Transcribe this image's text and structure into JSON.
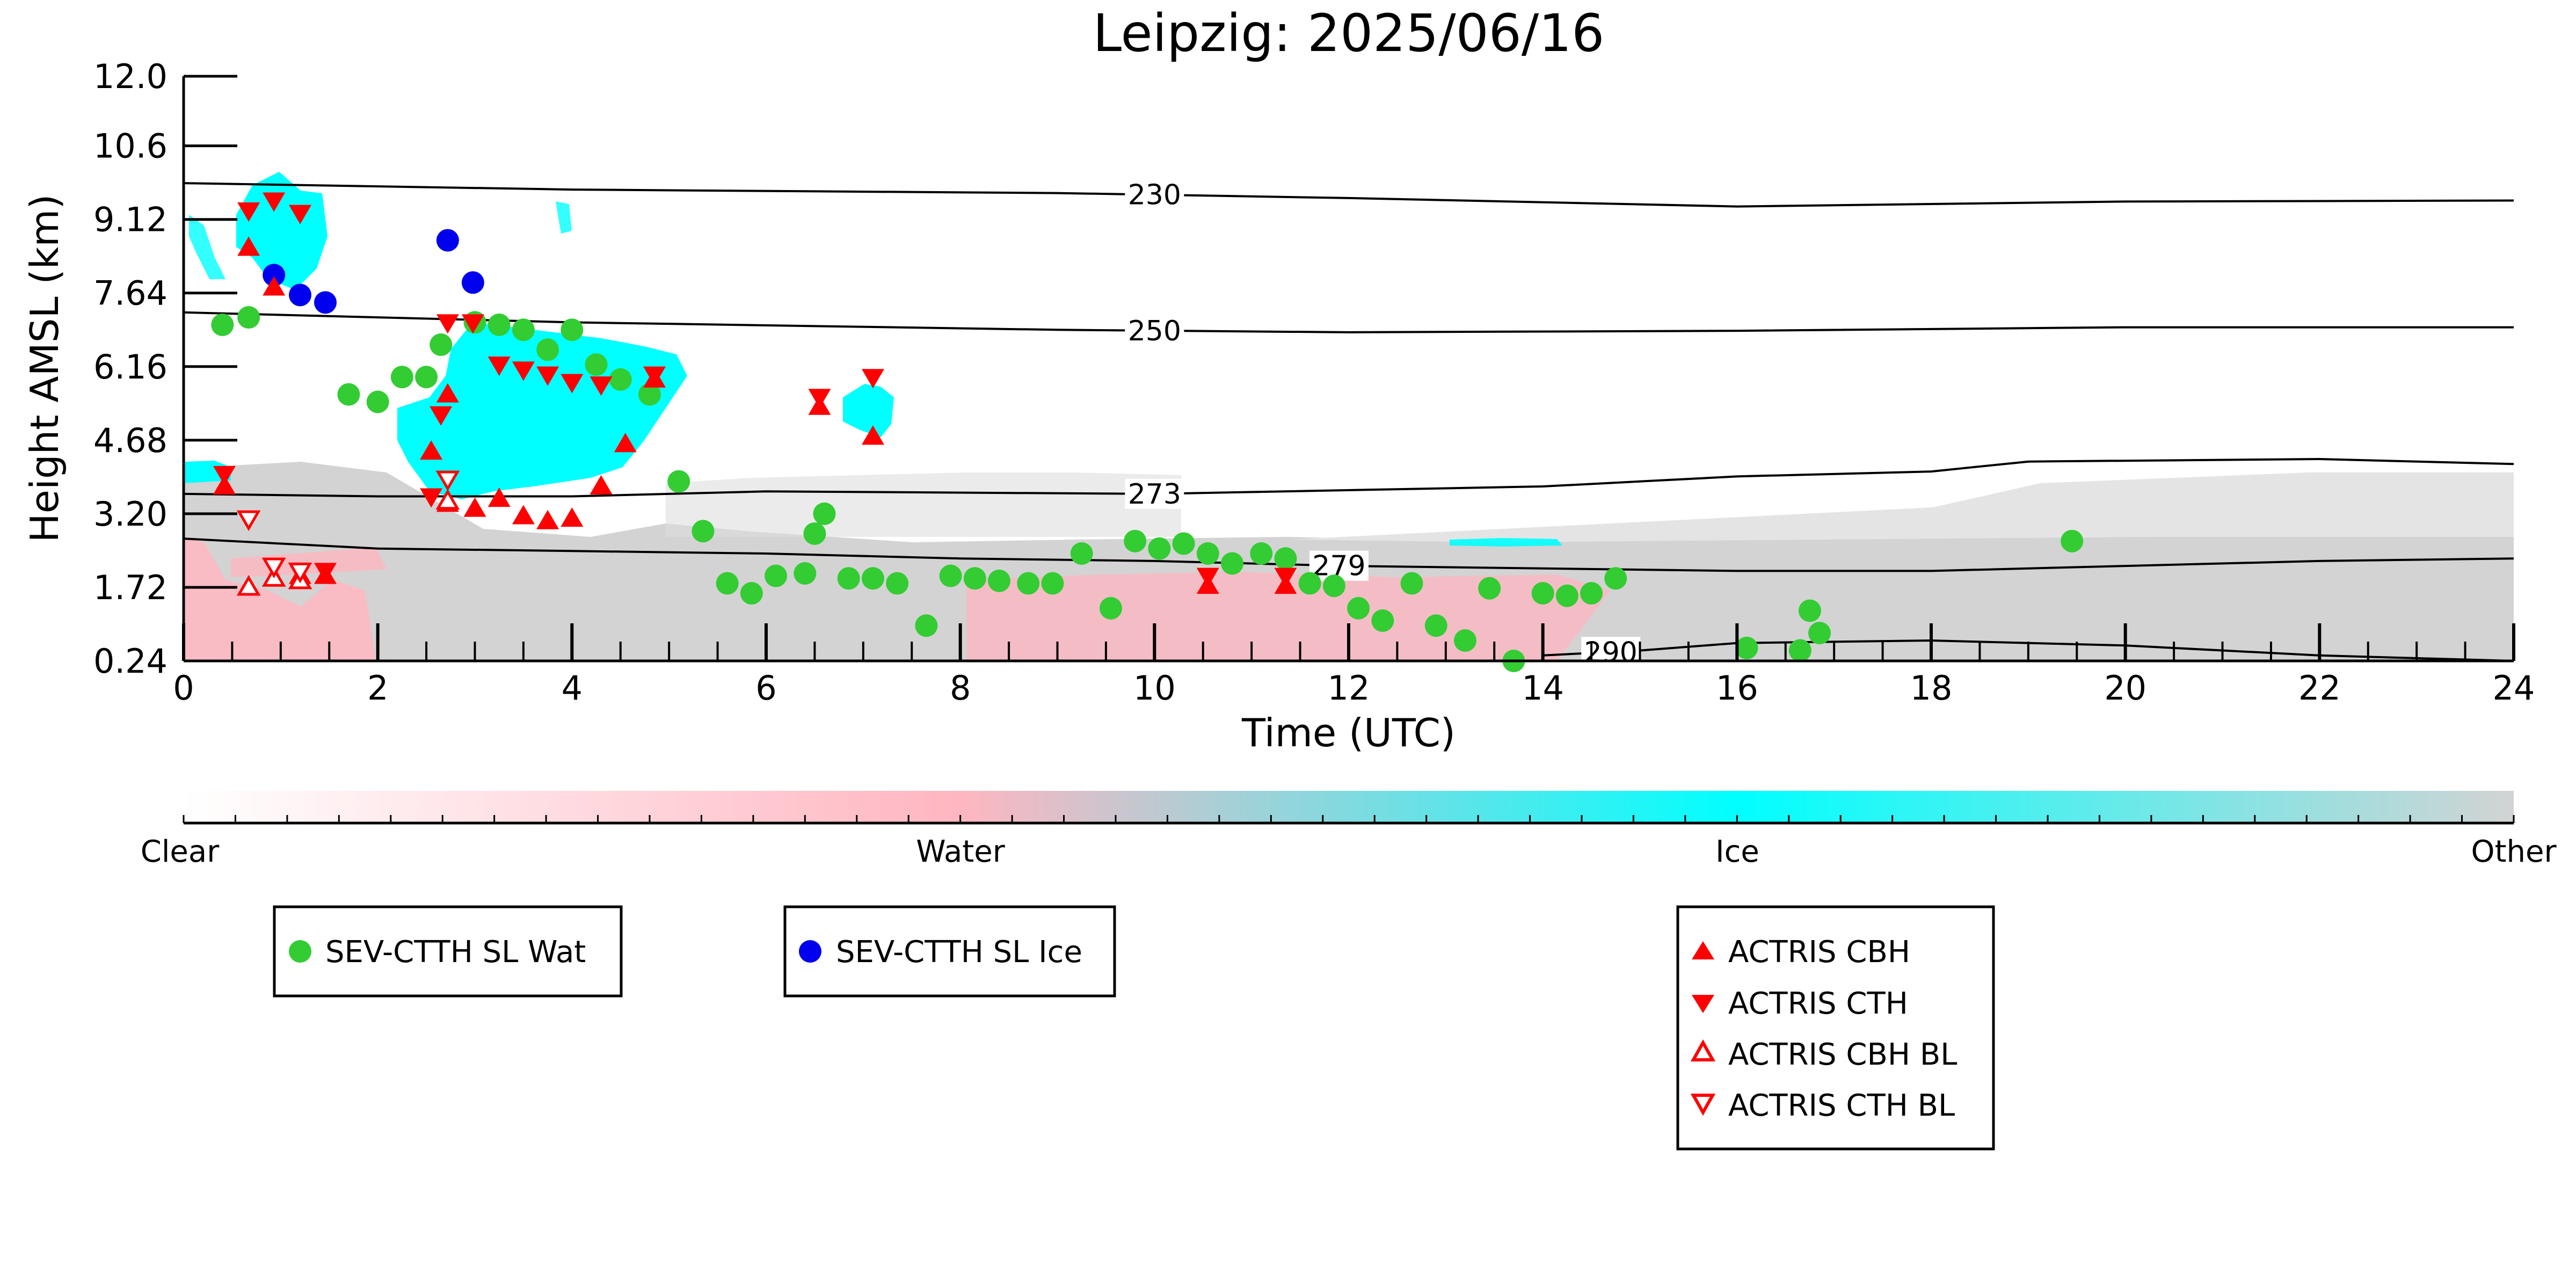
{
  "chart_data": {
    "type": "scatter",
    "title": "Leipzig: 2025/06/16",
    "xlabel": "Time (UTC)",
    "ylabel": "Height AMSL (km)",
    "xlim": [
      0,
      24
    ],
    "ylim": [
      0.24,
      12.0
    ],
    "xticks": [
      "0",
      "2",
      "4",
      "6",
      "8",
      "10",
      "12",
      "14",
      "16",
      "18",
      "20",
      "22",
      "24"
    ],
    "yticks": [
      "0.24",
      "1.72",
      "3.20",
      "4.68",
      "6.16",
      "7.64",
      "9.12",
      "10.6",
      "12.0"
    ],
    "colorbar": {
      "labels": [
        "Clear",
        "Water",
        "Ice",
        "Other"
      ],
      "colors": [
        "#ffffff",
        "#ffb6c1",
        "#00ffff",
        "#d3d3d3"
      ]
    },
    "temperature_contours": [
      {
        "label": "230",
        "x": [
          0,
          4,
          9,
          12,
          16,
          20,
          24
        ],
        "y": [
          9.85,
          9.72,
          9.65,
          9.55,
          9.38,
          9.48,
          9.5
        ]
      },
      {
        "label": "250",
        "x": [
          0,
          4,
          9,
          12,
          16,
          20,
          24
        ],
        "y": [
          7.25,
          7.05,
          6.9,
          6.85,
          6.88,
          6.95,
          6.95
        ]
      },
      {
        "label": "273",
        "x": [
          0,
          2,
          4,
          6,
          10,
          14,
          16,
          18,
          19,
          22,
          24
        ],
        "y": [
          3.6,
          3.55,
          3.55,
          3.65,
          3.6,
          3.75,
          3.95,
          4.05,
          4.25,
          4.3,
          4.2
        ]
      },
      {
        "label": "279",
        "x": [
          0,
          2,
          4,
          6,
          8,
          10,
          12,
          14,
          16,
          18,
          20,
          22,
          24
        ],
        "y": [
          2.7,
          2.5,
          2.45,
          2.4,
          2.3,
          2.25,
          2.15,
          2.1,
          2.05,
          2.05,
          2.15,
          2.25,
          2.3
        ]
      },
      {
        "label": "290",
        "x": [
          14,
          15,
          16,
          18,
          20,
          22,
          24
        ],
        "y": [
          0.35,
          0.45,
          0.6,
          0.65,
          0.55,
          0.35,
          0.24
        ]
      }
    ],
    "series": [
      {
        "name": "SEV-CTTH SL Wat",
        "marker": "circle",
        "color": "#33cc33",
        "x": [
          0.4,
          0.67,
          1.7,
          2.0,
          2.25,
          2.5,
          2.65,
          3.0,
          3.25,
          3.5,
          3.75,
          4.0,
          4.25,
          4.5,
          4.8,
          5.1,
          5.35,
          5.6,
          5.85,
          6.1,
          6.4,
          6.5,
          6.6,
          6.85,
          7.1,
          7.35,
          7.65,
          7.9,
          8.15,
          8.4,
          8.7,
          8.95,
          9.25,
          9.55,
          9.8,
          10.05,
          10.3,
          10.55,
          10.8,
          11.1,
          11.35,
          11.6,
          11.85,
          12.1,
          12.35,
          12.65,
          12.9,
          13.2,
          13.45,
          13.7,
          14.0,
          14.25,
          14.5,
          14.75,
          16.1,
          16.65,
          16.75,
          16.85,
          19.45
        ],
        "y": [
          7.0,
          7.15,
          5.6,
          5.45,
          5.95,
          5.95,
          6.6,
          7.05,
          7.0,
          6.9,
          6.5,
          6.9,
          6.2,
          5.9,
          5.6,
          3.85,
          2.85,
          1.8,
          1.6,
          1.95,
          2.0,
          2.8,
          3.2,
          1.9,
          1.9,
          1.8,
          0.95,
          1.95,
          1.9,
          1.85,
          1.8,
          1.8,
          2.4,
          1.3,
          2.65,
          2.5,
          2.6,
          2.4,
          2.2,
          2.4,
          2.3,
          1.8,
          1.75,
          1.3,
          1.05,
          1.8,
          0.95,
          0.65,
          1.7,
          0.24,
          1.6,
          1.55,
          1.6,
          1.9,
          0.5,
          0.45,
          1.25,
          0.8,
          2.65
        ]
      },
      {
        "name": "SEV-CTTH SL Ice",
        "marker": "circle",
        "color": "#0000ee",
        "x": [
          0.93,
          1.2,
          1.46,
          2.72,
          2.98
        ],
        "y": [
          8.0,
          7.6,
          7.45,
          8.7,
          7.85
        ]
      },
      {
        "name": "ACTRIS CBH",
        "marker": "triangle-up",
        "color": "#ff0000",
        "x": [
          0.42,
          0.67,
          0.93,
          1.2,
          1.46,
          2.55,
          2.72,
          2.72,
          3.0,
          3.25,
          3.5,
          3.75,
          4.0,
          4.3,
          4.55,
          4.85,
          6.55,
          7.1,
          10.55,
          11.35
        ],
        "y": [
          3.75,
          8.55,
          7.75,
          1.95,
          1.95,
          4.45,
          3.4,
          5.6,
          3.3,
          3.5,
          3.15,
          3.05,
          3.1,
          3.75,
          4.6,
          5.9,
          5.35,
          4.75,
          1.75,
          1.75
        ]
      },
      {
        "name": "ACTRIS CTH",
        "marker": "triangle-down",
        "color": "#ff0000",
        "x": [
          0.42,
          0.67,
          0.93,
          1.2,
          1.46,
          2.55,
          2.65,
          2.72,
          2.98,
          3.25,
          3.5,
          3.75,
          4.0,
          4.3,
          4.85,
          6.55,
          7.1,
          10.55,
          11.35
        ],
        "y": [
          4.0,
          9.3,
          9.5,
          9.25,
          2.05,
          3.55,
          5.2,
          7.05,
          7.05,
          6.2,
          6.1,
          6.0,
          5.85,
          5.8,
          6.0,
          5.55,
          5.95,
          1.95,
          1.95
        ]
      },
      {
        "name": "ACTRIS CBH BL",
        "marker": "triangle-up-open",
        "color": "#ff0000",
        "x": [
          0.67,
          0.93,
          1.2,
          2.72
        ],
        "y": [
          1.72,
          1.9,
          1.85,
          3.45
        ]
      },
      {
        "name": "ACTRIS CTH BL",
        "marker": "triangle-down-open",
        "color": "#ff0000",
        "x": [
          0.67,
          0.93,
          1.2,
          2.72
        ],
        "y": [
          3.1,
          2.15,
          2.05,
          3.9
        ]
      }
    ]
  }
}
